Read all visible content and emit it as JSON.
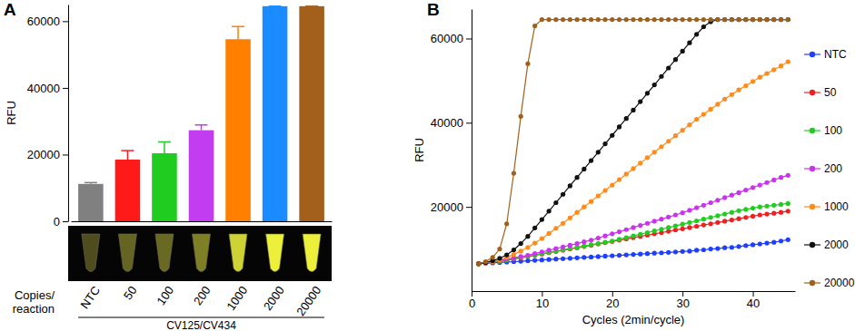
{
  "chart_data": [
    {
      "type": "bar",
      "title": "A",
      "y_label": "RFU",
      "x_label": "Copies/\nreaction",
      "group_label": "CV125/CV434",
      "categories": [
        "NTC",
        "50",
        "100",
        "200",
        "1000",
        "2000",
        "20000"
      ],
      "values": [
        11200,
        18500,
        20400,
        27300,
        54600,
        64500,
        64500
      ],
      "errors": [
        400,
        2700,
        3400,
        1600,
        3800,
        0,
        0
      ],
      "colors": [
        "#808080",
        "#ff1a1a",
        "#1fcc1f",
        "#c23cf0",
        "#ff8000",
        "#1a8cff",
        "#a35f1c"
      ],
      "ylim": [
        0,
        65000
      ],
      "yticks": [
        0,
        20000,
        40000,
        60000
      ]
    },
    {
      "type": "line",
      "title": "B",
      "y_label": "RFU",
      "x_label": "Cycles (2min/cycle)",
      "x": [
        1,
        2,
        3,
        4,
        5,
        6,
        7,
        8,
        9,
        10,
        11,
        12,
        13,
        14,
        15,
        16,
        17,
        18,
        19,
        20,
        21,
        22,
        23,
        24,
        25,
        26,
        27,
        28,
        29,
        30,
        31,
        32,
        33,
        34,
        35,
        36,
        37,
        38,
        39,
        40,
        41,
        42,
        43,
        44,
        45
      ],
      "xlim": [
        0,
        46
      ],
      "xticks": [
        0,
        10,
        20,
        30,
        40
      ],
      "ylim": [
        0,
        67000
      ],
      "yticks": [
        20000,
        40000,
        60000
      ],
      "legend": "right",
      "marker": "circle",
      "series": [
        {
          "name": "NTC",
          "color": "#1f3fff",
          "values": [
            6500,
            6600,
            6700,
            6800,
            6900,
            7000,
            7100,
            7200,
            7300,
            7400,
            7500,
            7600,
            7700,
            7800,
            7900,
            8000,
            8100,
            8200,
            8300,
            8400,
            8500,
            8600,
            8700,
            8800,
            8900,
            9000,
            9100,
            9200,
            9300,
            9400,
            9500,
            9700,
            9800,
            10000,
            10100,
            10300,
            10400,
            10600,
            10800,
            11000,
            11200,
            11400,
            11600,
            11900,
            12200
          ]
        },
        {
          "name": "50",
          "color": "#ee2020",
          "values": [
            6500,
            6700,
            6900,
            7100,
            7300,
            7600,
            7900,
            8200,
            8500,
            8800,
            9100,
            9400,
            9700,
            10000,
            10300,
            10600,
            10900,
            11200,
            11500,
            11800,
            12100,
            12400,
            12700,
            13000,
            13300,
            13600,
            13900,
            14200,
            14500,
            14800,
            15100,
            15400,
            15700,
            16000,
            16300,
            16600,
            16900,
            17200,
            17500,
            17800,
            18100,
            18300,
            18500,
            18700,
            19000
          ]
        },
        {
          "name": "100",
          "color": "#22cc22",
          "values": [
            6500,
            6700,
            6900,
            7100,
            7400,
            7700,
            8000,
            8300,
            8600,
            8900,
            9200,
            9500,
            9800,
            10100,
            10400,
            10700,
            11000,
            11300,
            11600,
            11900,
            12300,
            12700,
            13100,
            13500,
            13900,
            14300,
            14700,
            15100,
            15500,
            15900,
            16300,
            16700,
            17100,
            17500,
            17900,
            18300,
            18700,
            19100,
            19400,
            19700,
            20000,
            20200,
            20400,
            20600,
            20800
          ]
        },
        {
          "name": "200",
          "color": "#cc33ee",
          "values": [
            6500,
            6700,
            7000,
            7300,
            7600,
            7900,
            8200,
            8500,
            8900,
            9300,
            9700,
            10100,
            10500,
            10900,
            11300,
            11700,
            12100,
            12600,
            13100,
            13600,
            14100,
            14600,
            15100,
            15600,
            16100,
            16600,
            17100,
            17600,
            18100,
            18600,
            19200,
            19800,
            20400,
            21000,
            21600,
            22200,
            22800,
            23400,
            24000,
            24600,
            25200,
            25800,
            26400,
            27000,
            27500
          ]
        },
        {
          "name": "1000",
          "color": "#ff8c1a",
          "values": [
            6500,
            6700,
            7000,
            7400,
            8000,
            8700,
            9500,
            10400,
            11400,
            12500,
            13700,
            14900,
            16100,
            17400,
            18700,
            20000,
            21300,
            22600,
            23900,
            25200,
            26500,
            27800,
            29100,
            30400,
            31700,
            33000,
            34300,
            35600,
            36900,
            38200,
            39500,
            40800,
            42000,
            43200,
            44400,
            45600,
            46700,
            47800,
            48800,
            49800,
            50800,
            51700,
            52600,
            53500,
            54500
          ]
        },
        {
          "name": "2000",
          "color": "#111111",
          "values": [
            6500,
            6800,
            7200,
            7800,
            8600,
            9800,
            11300,
            13000,
            15000,
            17000,
            19000,
            21000,
            23000,
            25000,
            27000,
            29000,
            31000,
            33000,
            35000,
            37000,
            39000,
            41000,
            43000,
            45000,
            47000,
            49000,
            51000,
            53000,
            55000,
            57000,
            59000,
            61000,
            62800,
            64000,
            64500,
            64500,
            64500,
            64500,
            64500,
            64500,
            64500,
            64500,
            64500,
            64500,
            64500
          ]
        },
        {
          "name": "20000",
          "color": "#a0601a",
          "values": [
            6500,
            7000,
            8000,
            10000,
            16000,
            28000,
            41500,
            54000,
            63000,
            64500,
            64500,
            64500,
            64500,
            64500,
            64500,
            64500,
            64500,
            64500,
            64500,
            64500,
            64500,
            64500,
            64500,
            64500,
            64500,
            64500,
            64500,
            64500,
            64500,
            64500,
            64500,
            64500,
            64500,
            64500,
            64500,
            64500,
            64500,
            64500,
            64500,
            64500,
            64500,
            64500,
            64500,
            64500,
            64500
          ]
        }
      ]
    }
  ]
}
